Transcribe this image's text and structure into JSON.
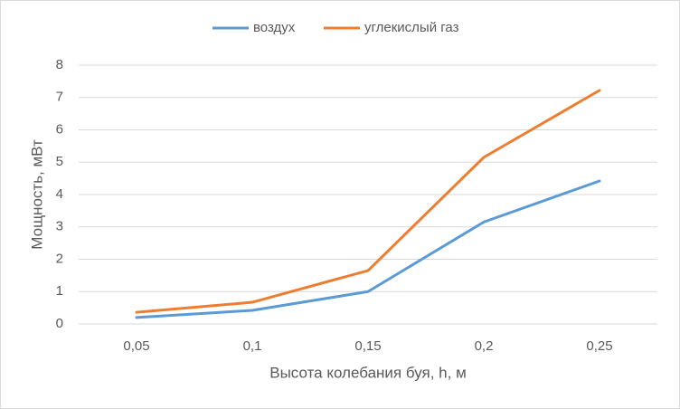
{
  "chart_data": {
    "type": "line",
    "x_label": "Высота колебания буя, h, м",
    "y_label": "Мощность, мВт",
    "categories": [
      "0,05",
      "0,1",
      "0,15",
      "0,2",
      "0,25"
    ],
    "series": [
      {
        "name": "воздух",
        "color": "#5b9bd5",
        "values": [
          0.2,
          0.42,
          1.0,
          3.15,
          4.42
        ]
      },
      {
        "name": "углекислый газ",
        "color": "#ed7d31",
        "values": [
          0.36,
          0.67,
          1.65,
          5.15,
          7.22
        ]
      }
    ],
    "ylim": [
      0,
      8
    ],
    "yticks": [
      0,
      1,
      2,
      3,
      4,
      5,
      6,
      7,
      8
    ],
    "grid": true,
    "legend": "top"
  }
}
